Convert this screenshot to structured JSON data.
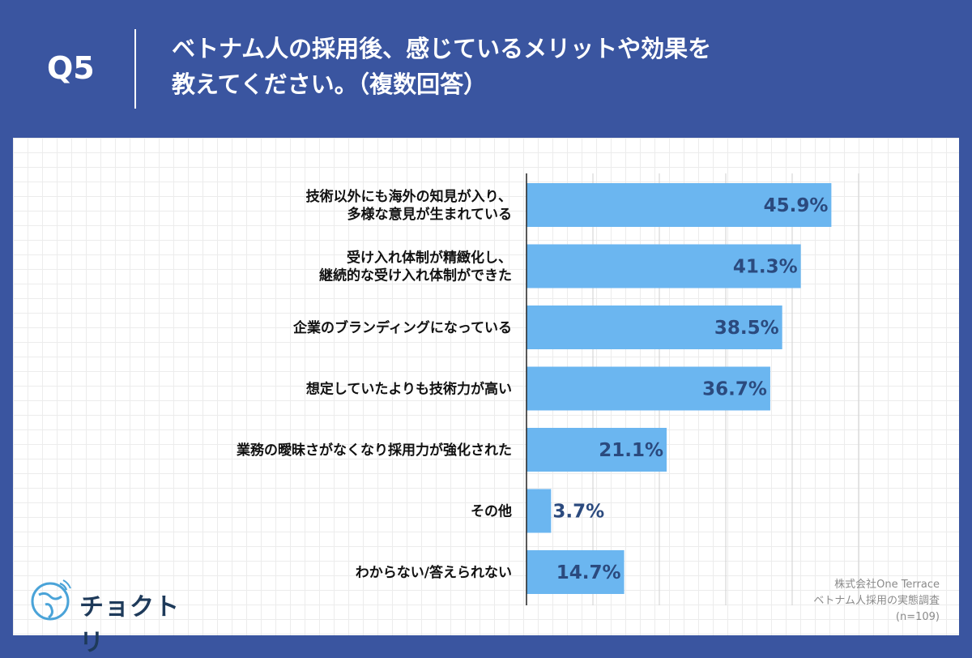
{
  "header": {
    "question_number": "Q5",
    "title": "ベトナム人の採用後、感じているメリットや効果を\n教えてください。（複数回答）"
  },
  "chart_data": {
    "type": "bar",
    "orientation": "horizontal",
    "categories": [
      "技術以外にも海外の知見が入り、\n多様な意見が生まれている",
      "受け入れ体制が精緻化し、\n継続的な受け入れ体制ができた",
      "企業のブランディングになっている",
      "想定していたよりも技術力が高い",
      "業務の曖昧さがなくなり採用力が強化された",
      "その他",
      "わからない/答えられない"
    ],
    "values": [
      45.9,
      41.3,
      38.5,
      36.7,
      21.1,
      3.7,
      14.7
    ],
    "value_labels": [
      "45.9%",
      "41.3%",
      "38.5%",
      "36.7%",
      "21.1%",
      "3.7%",
      "14.7%"
    ],
    "xlim": [
      0,
      50
    ],
    "grid": true,
    "bar_color": "#6bb6f0",
    "label_color": "#2b4a7e"
  },
  "logo": {
    "text": "チョクトリ"
  },
  "source": {
    "company": "株式会社One Terrace",
    "survey": "ベトナム人採用の実態調査",
    "sample": "(n=109)"
  },
  "colors": {
    "background": "#3a55a0",
    "panel": "#ffffff"
  }
}
